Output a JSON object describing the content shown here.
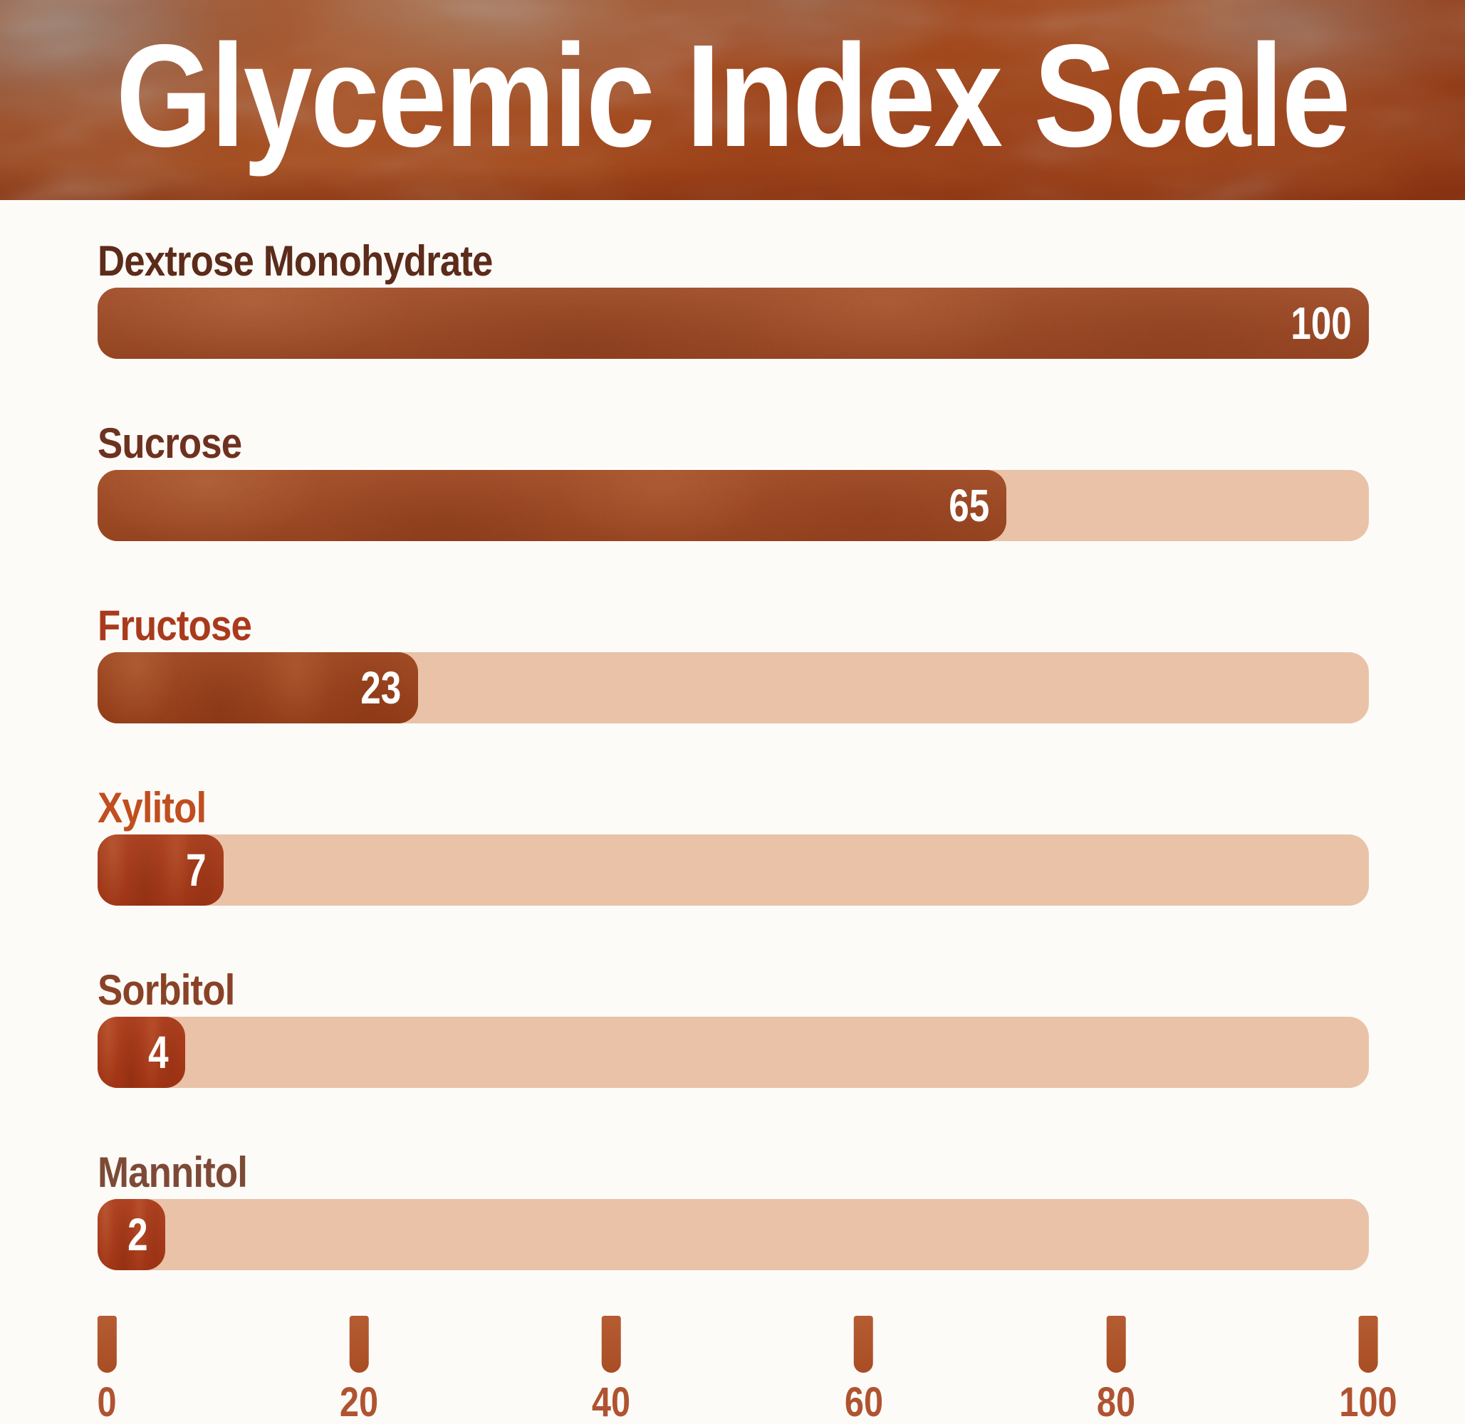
{
  "title": "Glycemic Index Scale",
  "chart_data": {
    "type": "bar",
    "orientation": "horizontal",
    "title": "Glycemic Index Scale",
    "categories": [
      "Dextrose Monohydrate",
      "Sucrose",
      "Fructose",
      "Xylitol",
      "Sorbitol",
      "Mannitol"
    ],
    "values": [
      100,
      65,
      23,
      7,
      4,
      2
    ],
    "xlim": [
      0,
      100
    ],
    "x_ticks": [
      "0",
      "20",
      "40",
      "60",
      "80",
      "100"
    ],
    "grid": false,
    "legend": false,
    "value_label_position": "inside-right",
    "layout": {
      "bar_fill_pct": [
        100,
        71.5,
        25.2,
        9.9,
        6.9,
        5.3
      ],
      "bar_colors": [
        "#a6512b",
        "#a74f27",
        "#a4481f",
        "#b03e1b",
        "#b33c19",
        "#b43e1b"
      ],
      "label_colors": [
        "#5c2b1a",
        "#6e3120",
        "#a93a1c",
        "#c04e1f",
        "#8a4227",
        "#7d4a37"
      ],
      "track_color": "#e9c2a8",
      "value_text_color": "#ffffff",
      "tick_mark_color": "#b65c32",
      "tick_label_color": "#b05330",
      "header_base_color": "#a84a1f",
      "title_color": "#ffffff",
      "background_color": "#fcfbf8"
    }
  }
}
